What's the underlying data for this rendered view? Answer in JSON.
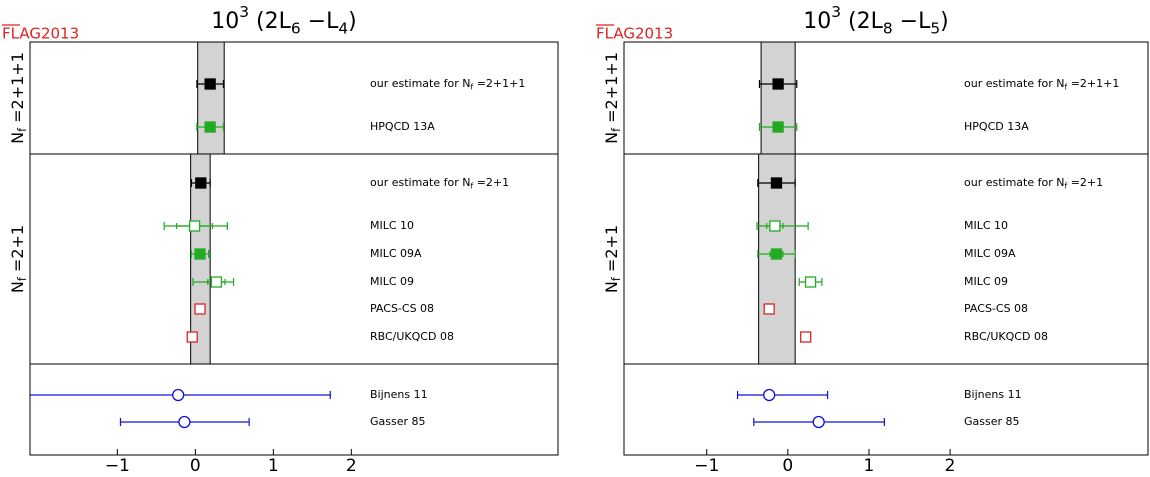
{
  "chart_data": [
    {
      "type": "forest",
      "title": [
        {
          "text": "10"
        },
        {
          "text": "3",
          "pos": "sup"
        },
        {
          "text": " (2L"
        },
        {
          "text": "6",
          "pos": "sub"
        },
        {
          "text": " −L"
        },
        {
          "text": "4",
          "pos": "sub"
        },
        {
          "text": ")"
        }
      ],
      "logo": "FLAG2013",
      "xlim": [
        -2.12,
        4.65
      ],
      "xticks": [
        {
          "value": -1,
          "label": "−1"
        },
        0,
        1,
        2
      ],
      "groups": [
        {
          "label": [
            {
              "text": "N"
            },
            {
              "text": "f",
              "pos": "sub"
            },
            {
              "text": " =2+1+1"
            }
          ],
          "band": [
            0.03,
            0.37
          ],
          "rows": [
            {
              "label": [
                {
                  "text": "our estimate for N"
                },
                {
                  "text": "f",
                  "pos": "sub"
                },
                {
                  "text": " =2+1+1"
                }
              ],
              "value": 0.19,
              "error": [
                0.17,
                0.17
              ],
              "marker": "square",
              "filled": true,
              "color": "#000000"
            },
            {
              "label": [
                {
                  "text": "HPQCD 13A"
                }
              ],
              "value": 0.19,
              "error": [
                0.17,
                0.17
              ],
              "marker": "square",
              "filled": true,
              "color": "#22aa22"
            }
          ]
        },
        {
          "label": [
            {
              "text": "N"
            },
            {
              "text": "f",
              "pos": "sub"
            },
            {
              "text": " =2+1"
            }
          ],
          "band": [
            -0.06,
            0.19
          ],
          "rows": [
            {
              "label": [
                {
                  "text": "our estimate for N"
                },
                {
                  "text": "f",
                  "pos": "sub"
                },
                {
                  "text": " =2+1"
                }
              ],
              "value": 0.07,
              "error": [
                0.12,
                0.12
              ],
              "marker": "square",
              "filled": true,
              "color": "#000000"
            },
            {
              "label": [
                {
                  "text": "MILC 10"
                }
              ],
              "value": -0.01,
              "error": [
                0.39,
                0.42
              ],
              "stat_error": [
                0.23,
                0.23
              ],
              "marker": "square",
              "filled": false,
              "color": "#22aa22"
            },
            {
              "label": [
                {
                  "text": "MILC 09A"
                }
              ],
              "value": 0.06,
              "error": [
                0.11,
                0.11
              ],
              "marker": "square",
              "filled": true,
              "color": "#22aa22"
            },
            {
              "label": [
                {
                  "text": "MILC 09"
                }
              ],
              "value": 0.27,
              "error": [
                0.3,
                0.22
              ],
              "stat_error": [
                0.11,
                0.11
              ],
              "marker": "square",
              "filled": false,
              "color": "#22aa22"
            },
            {
              "label": [
                {
                  "text": "PACS-CS 08"
                }
              ],
              "value": 0.06,
              "marker": "square",
              "filled": false,
              "color": "#dd2222"
            },
            {
              "label": [
                {
                  "text": "RBC/UKQCD 08"
                }
              ],
              "value": -0.04,
              "marker": "square",
              "filled": false,
              "color": "#dd2222"
            }
          ]
        },
        {
          "rows": [
            {
              "label": [
                {
                  "text": "Bijnens 11"
                }
              ],
              "value": -0.22,
              "error": [
                1.95,
                1.95
              ],
              "marker": "circle",
              "filled": false,
              "color": "#1010dd"
            },
            {
              "label": [
                {
                  "text": "Gasser 85"
                }
              ],
              "value": -0.14,
              "error": [
                0.82,
                0.83
              ],
              "marker": "circle",
              "filled": false,
              "color": "#1010dd"
            }
          ]
        }
      ]
    },
    {
      "type": "forest",
      "title": [
        {
          "text": "10"
        },
        {
          "text": "3",
          "pos": "sup"
        },
        {
          "text": " (2L"
        },
        {
          "text": "8",
          "pos": "sub"
        },
        {
          "text": " −L"
        },
        {
          "text": "5",
          "pos": "sub"
        },
        {
          "text": ")"
        }
      ],
      "logo": "FLAG2013",
      "xlim": [
        -2.02,
        4.44
      ],
      "xticks": [
        {
          "value": -1,
          "label": "−1"
        },
        0,
        1,
        2
      ],
      "groups": [
        {
          "label": [
            {
              "text": "N"
            },
            {
              "text": "f",
              "pos": "sub"
            },
            {
              "text": " =2+1+1"
            }
          ],
          "band": [
            -0.33,
            0.09
          ],
          "rows": [
            {
              "label": [
                {
                  "text": "our estimate for N"
                },
                {
                  "text": "f",
                  "pos": "sub"
                },
                {
                  "text": " =2+1+1"
                }
              ],
              "value": -0.12,
              "error": [
                0.23,
                0.23
              ],
              "marker": "square",
              "filled": true,
              "color": "#000000"
            },
            {
              "label": [
                {
                  "text": "HPQCD 13A"
                }
              ],
              "value": -0.12,
              "error": [
                0.23,
                0.23
              ],
              "marker": "square",
              "filled": true,
              "color": "#22aa22"
            }
          ]
        },
        {
          "label": [
            {
              "text": "N"
            },
            {
              "text": "f",
              "pos": "sub"
            },
            {
              "text": " =2+1"
            }
          ],
          "band": [
            -0.36,
            0.09
          ],
          "rows": [
            {
              "label": [
                {
                  "text": "our estimate for N"
                },
                {
                  "text": "f",
                  "pos": "sub"
                },
                {
                  "text": " =2+1"
                }
              ],
              "value": -0.14,
              "error": [
                0.23,
                0.23
              ],
              "marker": "square",
              "filled": true,
              "color": "#000000"
            },
            {
              "label": [
                {
                  "text": "MILC 10"
                }
              ],
              "value": -0.16,
              "error": [
                0.22,
                0.41
              ],
              "stat_error": [
                0.1,
                0.1
              ],
              "marker": "square",
              "filled": false,
              "color": "#22aa22"
            },
            {
              "label": [
                {
                  "text": "MILC 09A"
                }
              ],
              "value": -0.14,
              "error": [
                0.23,
                0.23
              ],
              "stat_error": [
                0.08,
                0.08
              ],
              "marker": "square",
              "filled": true,
              "color": "#22aa22"
            },
            {
              "label": [
                {
                  "text": "MILC 09"
                }
              ],
              "value": 0.28,
              "error": [
                0.14,
                0.14
              ],
              "stat_error": [
                0.06,
                0.06
              ],
              "marker": "square",
              "filled": false,
              "color": "#22aa22"
            },
            {
              "label": [
                {
                  "text": "PACS-CS 08"
                }
              ],
              "value": -0.23,
              "marker": "square",
              "filled": false,
              "color": "#dd2222"
            },
            {
              "label": [
                {
                  "text": "RBC/UKQCD 08"
                }
              ],
              "value": 0.22,
              "marker": "square",
              "filled": false,
              "color": "#dd2222"
            }
          ]
        },
        {
          "rows": [
            {
              "label": [
                {
                  "text": "Bijnens 11"
                }
              ],
              "value": -0.23,
              "error": [
                0.39,
                0.72
              ],
              "marker": "circle",
              "filled": false,
              "color": "#1010dd"
            },
            {
              "label": [
                {
                  "text": "Gasser 85"
                }
              ],
              "value": 0.38,
              "error": [
                0.8,
                0.81
              ],
              "marker": "circle",
              "filled": false,
              "color": "#1010dd"
            }
          ]
        }
      ]
    }
  ]
}
